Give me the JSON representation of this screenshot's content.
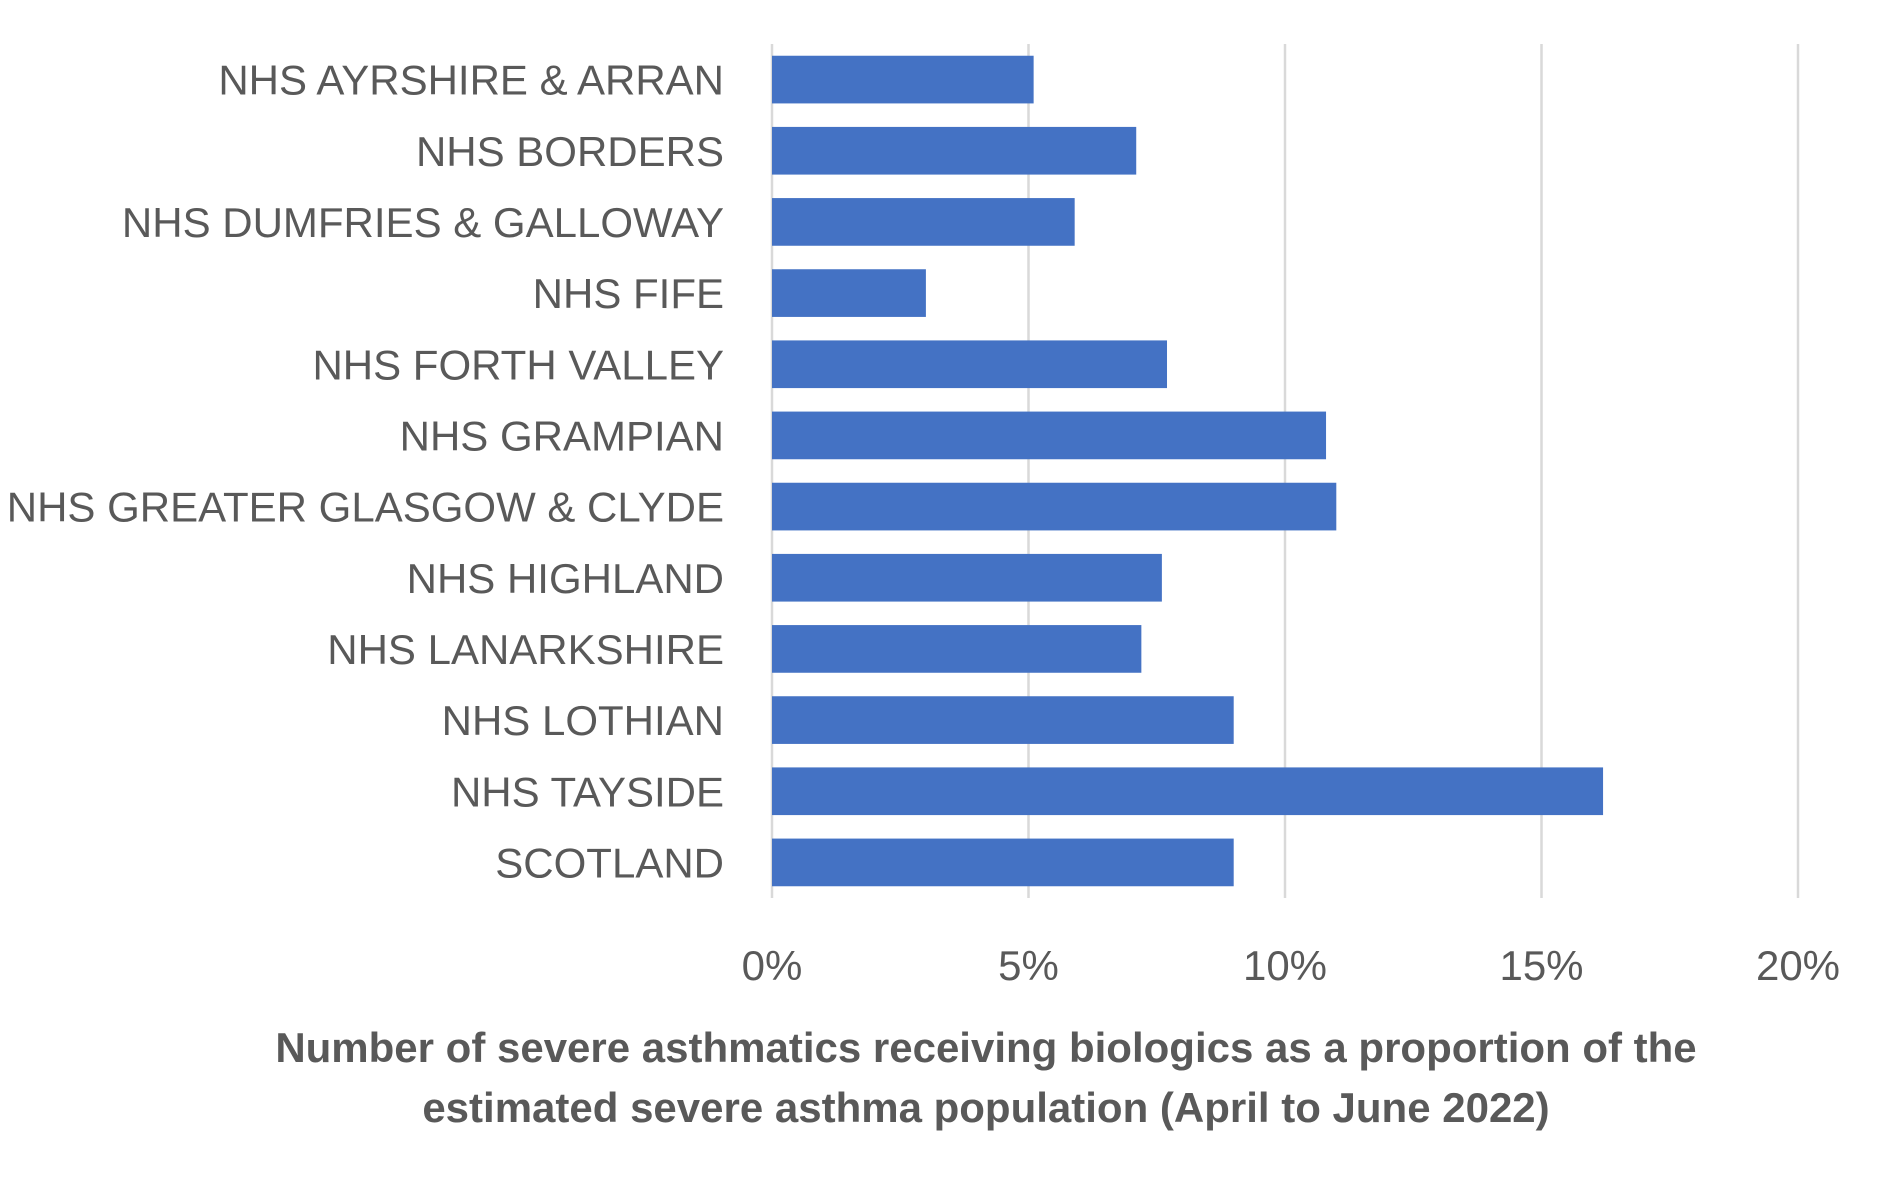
{
  "chart_data": {
    "type": "bar",
    "orientation": "horizontal",
    "title": "",
    "xlabel_lines": [
      "Number of severe asthmatics receiving biologics as a proportion of the",
      "estimated severe asthma population (April to June 2022)"
    ],
    "ylabel": "",
    "categories": [
      "NHS AYRSHIRE & ARRAN",
      "NHS BORDERS",
      "NHS DUMFRIES & GALLOWAY",
      "NHS FIFE",
      "NHS FORTH VALLEY",
      "NHS GRAMPIAN",
      "NHS GREATER GLASGOW & CLYDE",
      "NHS HIGHLAND",
      "NHS LANARKSHIRE",
      "NHS LOTHIAN",
      "NHS TAYSIDE",
      "SCOTLAND"
    ],
    "values": [
      5.1,
      7.1,
      5.9,
      3.0,
      7.7,
      10.8,
      11.0,
      7.6,
      7.2,
      9.0,
      16.2,
      9.0
    ],
    "unit": "%",
    "xlim": [
      0,
      20
    ],
    "xticks": [
      0,
      5,
      10,
      15,
      20
    ],
    "xtick_labels": [
      "0%",
      "5%",
      "10%",
      "15%",
      "20%"
    ],
    "grid": "vertical",
    "legend": "none",
    "bar_color": "#4472c4"
  }
}
